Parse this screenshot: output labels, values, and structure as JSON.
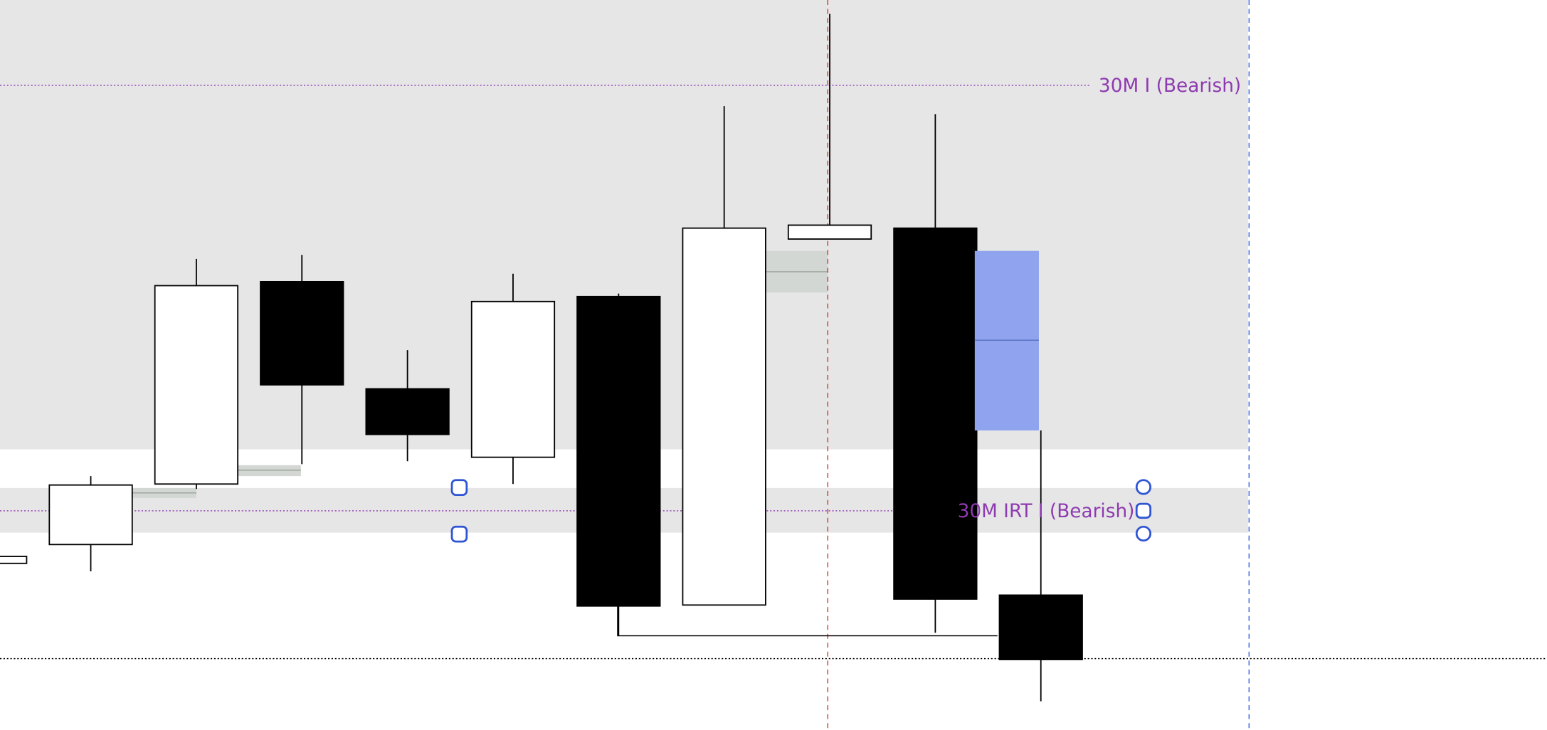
{
  "chart_data": {
    "type": "candlestick",
    "categories": [
      null,
      null,
      null,
      null,
      null,
      null,
      null,
      null,
      null,
      null,
      null
    ],
    "open": [
      168,
      187,
      248,
      452,
      344,
      275,
      437,
      126,
      495,
      506,
      136
    ],
    "high": [
      175,
      256,
      475,
      479,
      383,
      460,
      440,
      629,
      722,
      621,
      302
    ],
    "low": [
      168,
      160,
      243,
      268,
      271,
      248,
      95,
      126,
      495,
      98,
      29
    ],
    "close": [
      175,
      247,
      448,
      348,
      298,
      432,
      125,
      506,
      509,
      132,
      71
    ],
    "ylim": [
      0,
      736
    ],
    "annotations": [
      "30M I (Bearish)",
      "30M IRT I (Bearish)"
    ],
    "up_color": "#ffffff",
    "down_color": "#000000"
  }
}
